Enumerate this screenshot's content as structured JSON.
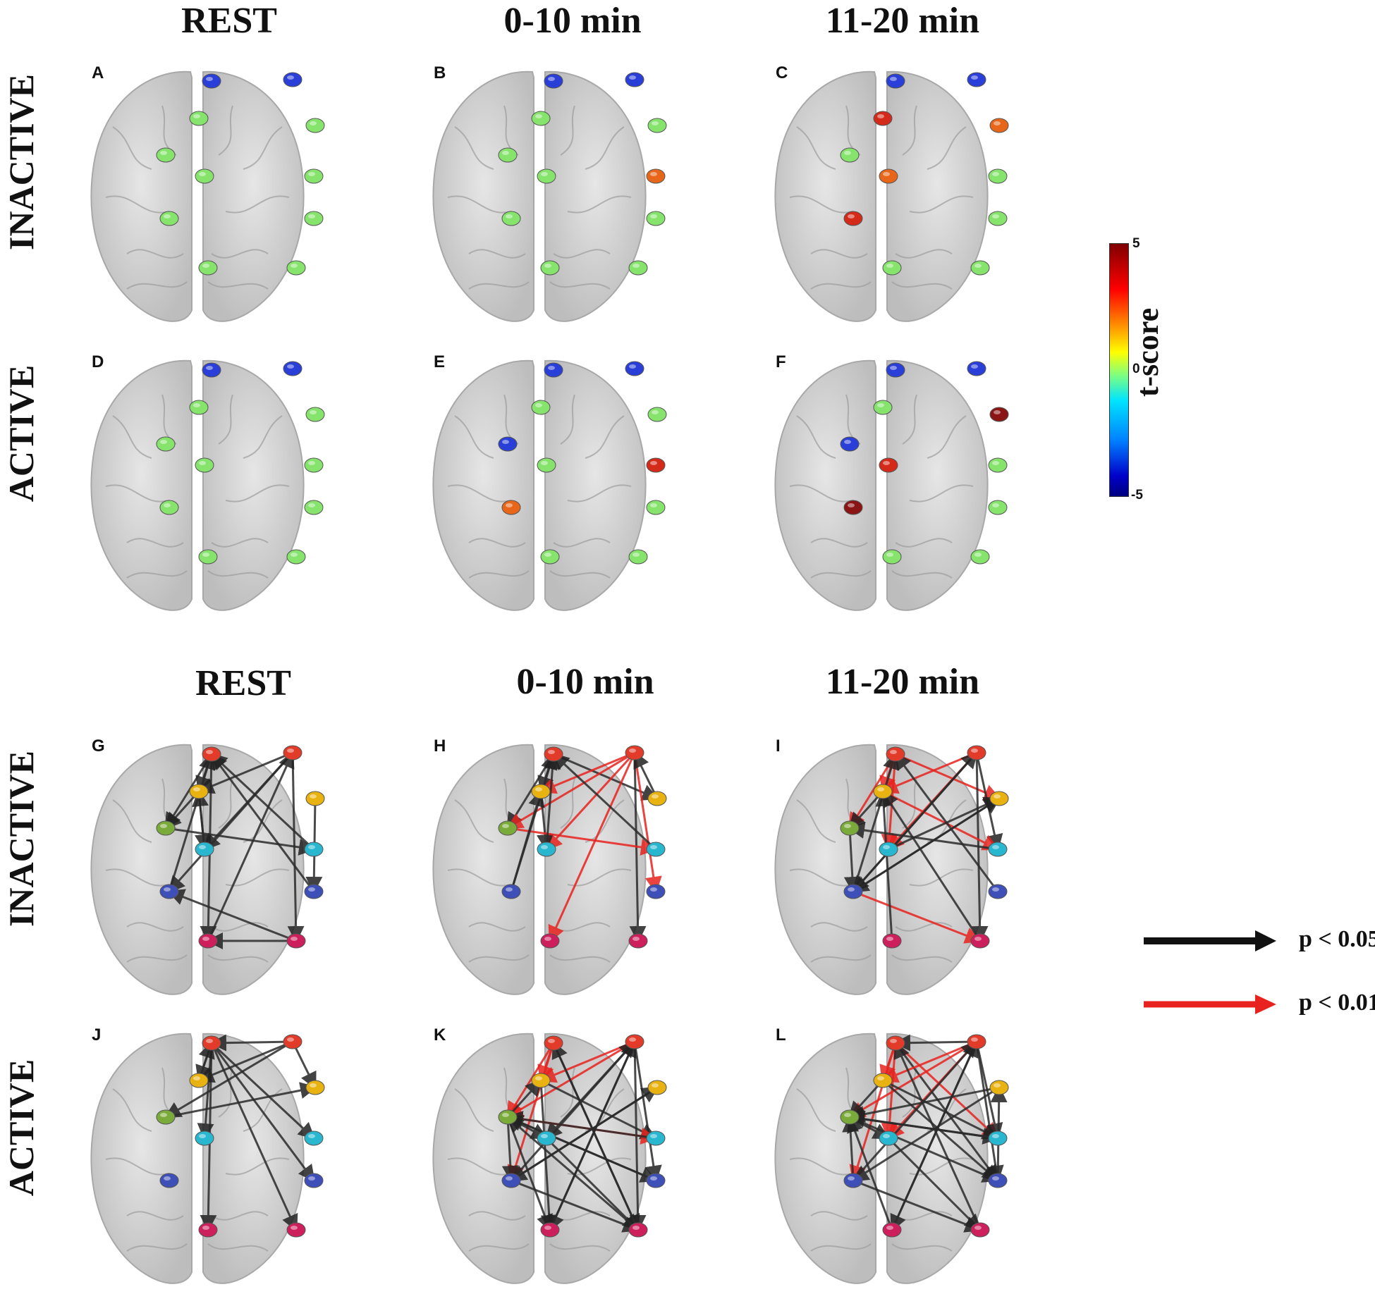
{
  "top_section": {
    "col_titles": [
      "REST",
      "0-10 min",
      "11-20 min"
    ],
    "row_titles": [
      "INACTIVE",
      "ACTIVE"
    ]
  },
  "bottom_section": {
    "col_titles": [
      "REST",
      "0-10 min",
      "11-20 min"
    ],
    "row_titles": [
      "INACTIVE",
      "ACTIVE"
    ]
  },
  "colorbar": {
    "label": "t-score",
    "ticks": [
      "5",
      "0",
      "-5"
    ],
    "min": -5,
    "max": 5
  },
  "legend": [
    {
      "label": "p < 0.05",
      "color": "#111111"
    },
    {
      "label": "p < 0.01",
      "color": "#e8231f"
    }
  ],
  "node_colors": {
    "neutral": "#86e36c",
    "blue": "#2a3fd8",
    "orange": "#e8661a",
    "red": "#d42a1a",
    "darkred": "#8b1414"
  },
  "network_node_colors": [
    "#e23b2a",
    "#e23b2a",
    "#e8b211",
    "#e8b211",
    "#7aab3a",
    "#29b6cf",
    "#29b6cf",
    "#3f4fb8",
    "#3f4fb8",
    "#cc1f5b",
    "#cc1f5b"
  ],
  "panels_top": [
    {
      "letter": "A",
      "colors": [
        "blue",
        "blue",
        "neutral",
        "neutral",
        "neutral",
        "neutral",
        "neutral",
        "neutral",
        "neutral",
        "neutral",
        "neutral"
      ]
    },
    {
      "letter": "B",
      "colors": [
        "blue",
        "blue",
        "neutral",
        "neutral",
        "neutral",
        "neutral",
        "orange",
        "neutral",
        "neutral",
        "neutral",
        "neutral"
      ]
    },
    {
      "letter": "C",
      "colors": [
        "blue",
        "blue",
        "red",
        "orange",
        "neutral",
        "orange",
        "neutral",
        "red",
        "neutral",
        "neutral",
        "neutral"
      ]
    },
    {
      "letter": "D",
      "colors": [
        "blue",
        "blue",
        "neutral",
        "neutral",
        "neutral",
        "neutral",
        "neutral",
        "neutral",
        "neutral",
        "neutral",
        "neutral"
      ]
    },
    {
      "letter": "E",
      "colors": [
        "blue",
        "blue",
        "neutral",
        "neutral",
        "blue",
        "neutral",
        "red",
        "orange",
        "neutral",
        "neutral",
        "neutral"
      ]
    },
    {
      "letter": "F",
      "colors": [
        "blue",
        "blue",
        "neutral",
        "darkred",
        "blue",
        "red",
        "neutral",
        "darkred",
        "neutral",
        "neutral",
        "neutral"
      ]
    }
  ],
  "panels_bottom": [
    {
      "letter": "G",
      "edges": [
        [
          0,
          2,
          0
        ],
        [
          0,
          4,
          0
        ],
        [
          0,
          9,
          0
        ],
        [
          1,
          2,
          0
        ],
        [
          1,
          5,
          0
        ],
        [
          1,
          7,
          0
        ],
        [
          1,
          10,
          0
        ],
        [
          2,
          4,
          0
        ],
        [
          2,
          5,
          0
        ],
        [
          3,
          8,
          0
        ],
        [
          4,
          6,
          0
        ],
        [
          5,
          2,
          0
        ],
        [
          7,
          0,
          0
        ],
        [
          8,
          0,
          0
        ],
        [
          10,
          7,
          0
        ],
        [
          10,
          9,
          0
        ],
        [
          6,
          0,
          0
        ],
        [
          9,
          1,
          0
        ]
      ]
    },
    {
      "letter": "H",
      "edges": [
        [
          0,
          2,
          0
        ],
        [
          0,
          4,
          0
        ],
        [
          0,
          3,
          0
        ],
        [
          1,
          2,
          1
        ],
        [
          1,
          4,
          1
        ],
        [
          1,
          5,
          1
        ],
        [
          1,
          8,
          1
        ],
        [
          1,
          9,
          1
        ],
        [
          1,
          10,
          0
        ],
        [
          2,
          5,
          0
        ],
        [
          4,
          6,
          1
        ],
        [
          5,
          0,
          0
        ],
        [
          7,
          0,
          0
        ],
        [
          7,
          2,
          0
        ],
        [
          3,
          1,
          0
        ],
        [
          6,
          0,
          0
        ]
      ]
    },
    {
      "letter": "I",
      "edges": [
        [
          0,
          2,
          1
        ],
        [
          0,
          4,
          1
        ],
        [
          0,
          5,
          1
        ],
        [
          0,
          3,
          1
        ],
        [
          1,
          2,
          1
        ],
        [
          1,
          5,
          1
        ],
        [
          1,
          6,
          0
        ],
        [
          1,
          7,
          0
        ],
        [
          1,
          10,
          0
        ],
        [
          2,
          4,
          0
        ],
        [
          2,
          6,
          1
        ],
        [
          3,
          7,
          0
        ],
        [
          4,
          7,
          0
        ],
        [
          6,
          4,
          0
        ],
        [
          7,
          0,
          0
        ],
        [
          7,
          1,
          0
        ],
        [
          7,
          10,
          1
        ],
        [
          7,
          3,
          0
        ],
        [
          9,
          2,
          0
        ],
        [
          10,
          2,
          0
        ],
        [
          5,
          3,
          0
        ],
        [
          8,
          0,
          0
        ]
      ]
    },
    {
      "letter": "J",
      "edges": [
        [
          0,
          2,
          0
        ],
        [
          0,
          5,
          0
        ],
        [
          0,
          6,
          0
        ],
        [
          0,
          8,
          0
        ],
        [
          0,
          10,
          0
        ],
        [
          0,
          9,
          0
        ],
        [
          1,
          0,
          0
        ],
        [
          1,
          2,
          0
        ],
        [
          1,
          3,
          0
        ],
        [
          1,
          4,
          0
        ],
        [
          4,
          3,
          0
        ],
        [
          2,
          0,
          0
        ]
      ]
    },
    {
      "letter": "K",
      "edges": [
        [
          0,
          2,
          1
        ],
        [
          0,
          4,
          1
        ],
        [
          0,
          7,
          1
        ],
        [
          0,
          10,
          0
        ],
        [
          1,
          2,
          1
        ],
        [
          1,
          4,
          1
        ],
        [
          1,
          5,
          0
        ],
        [
          1,
          8,
          0
        ],
        [
          1,
          9,
          0
        ],
        [
          1,
          10,
          0
        ],
        [
          2,
          6,
          0
        ],
        [
          2,
          9,
          0
        ],
        [
          3,
          7,
          0
        ],
        [
          4,
          2,
          0
        ],
        [
          4,
          5,
          0
        ],
        [
          4,
          6,
          1
        ],
        [
          4,
          7,
          0
        ],
        [
          4,
          8,
          0
        ],
        [
          4,
          9,
          0
        ],
        [
          5,
          10,
          0
        ],
        [
          6,
          4,
          0
        ],
        [
          7,
          1,
          0
        ],
        [
          7,
          3,
          0
        ],
        [
          7,
          10,
          0
        ],
        [
          8,
          4,
          0
        ],
        [
          9,
          1,
          0
        ],
        [
          10,
          4,
          0
        ],
        [
          10,
          0,
          0
        ]
      ]
    },
    {
      "letter": "L",
      "edges": [
        [
          0,
          2,
          1
        ],
        [
          0,
          5,
          1
        ],
        [
          0,
          6,
          1
        ],
        [
          0,
          7,
          1
        ],
        [
          0,
          8,
          0
        ],
        [
          1,
          0,
          0
        ],
        [
          1,
          2,
          1
        ],
        [
          1,
          4,
          1
        ],
        [
          1,
          5,
          1
        ],
        [
          1,
          6,
          0
        ],
        [
          1,
          8,
          0
        ],
        [
          1,
          9,
          0
        ],
        [
          2,
          4,
          0
        ],
        [
          2,
          6,
          0
        ],
        [
          2,
          8,
          0
        ],
        [
          3,
          4,
          0
        ],
        [
          3,
          7,
          0
        ],
        [
          4,
          6,
          0
        ],
        [
          4,
          5,
          0
        ],
        [
          4,
          8,
          0
        ],
        [
          5,
          10,
          0
        ],
        [
          6,
          4,
          0
        ],
        [
          7,
          1,
          0
        ],
        [
          7,
          4,
          0
        ],
        [
          7,
          10,
          0
        ],
        [
          8,
          3,
          0
        ],
        [
          9,
          1,
          0
        ],
        [
          9,
          4,
          0
        ],
        [
          10,
          0,
          0
        ]
      ]
    }
  ]
}
